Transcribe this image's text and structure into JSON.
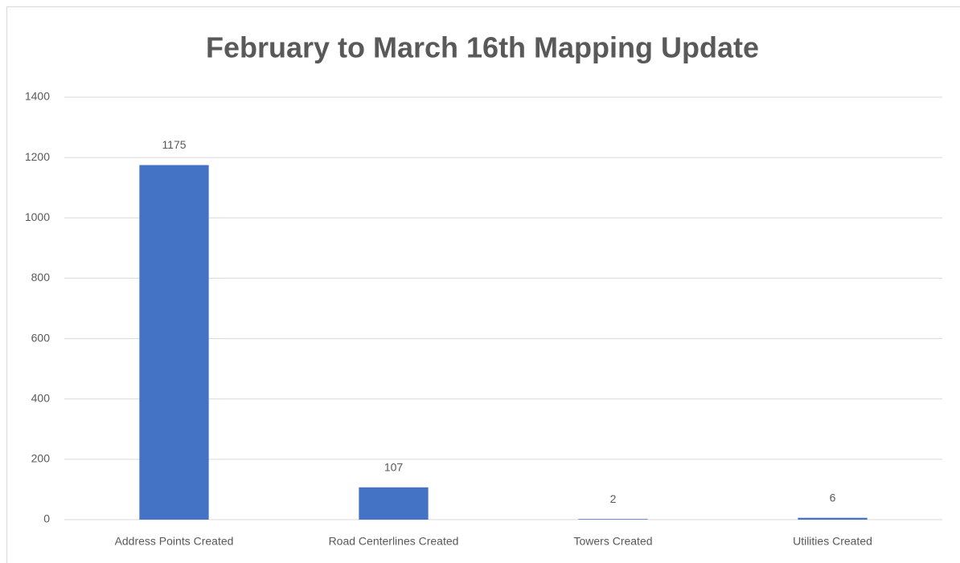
{
  "chart_data": {
    "type": "bar",
    "title": "February to March 16th Mapping Update",
    "categories": [
      "Address Points Created",
      "Road Centerlines Created",
      "Towers Created",
      "Utilities Created"
    ],
    "values": [
      1175,
      107,
      2,
      6
    ],
    "color": "#4472c4",
    "ylim": [
      0,
      1400
    ],
    "yticks": [
      0,
      200,
      400,
      600,
      800,
      1000,
      1200,
      1400
    ],
    "grid": true
  }
}
